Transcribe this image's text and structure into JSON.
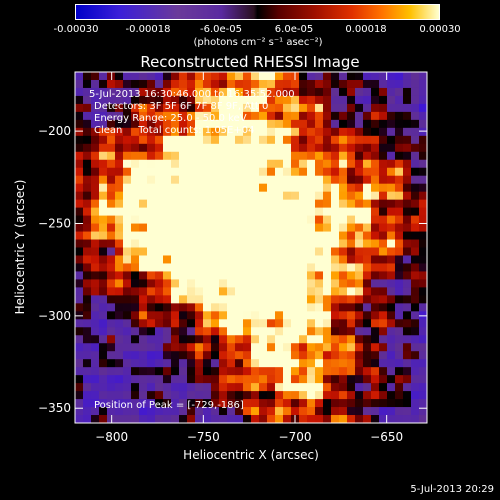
{
  "colorbar": {
    "ticks": [
      {
        "label": "-0.00030",
        "value": -0.0003
      },
      {
        "label": "-0.00018",
        "value": -0.00018
      },
      {
        "label": "-6.0e-05",
        "value": -6e-05
      },
      {
        "label": "6.0e-05",
        "value": 6e-05
      },
      {
        "label": "0.00018",
        "value": 0.00018
      },
      {
        "label": "0.00030",
        "value": 0.0003
      }
    ],
    "unit": "(photons cm⁻² s⁻¹ asec⁻²)",
    "range": [
      -0.0003,
      0.0003
    ]
  },
  "chart_data": {
    "type": "heatmap",
    "title": "Reconstructed RHESSI Image",
    "xlabel": "Heliocentric X (arcsec)",
    "ylabel": "Heliocentric Y (arcsec)",
    "xlim": [
      -820,
      -628
    ],
    "ylim": [
      -358,
      -168
    ],
    "xticks": [
      -800,
      -750,
      -700,
      -650
    ],
    "yticks": [
      -200,
      -250,
      -300,
      -350
    ],
    "annotations": [
      "5-Jul-2013 16:30:46.000 to 16:35:52.000",
      "Detectors: 3F 5F 6F 7F 8F 9F, Att 0",
      "Energy Range: 25.0 - 50.0 keV",
      "Clean     Total counts: 1.05E+04"
    ],
    "peak_label": "Position of Peak = [-729,-186]",
    "peak": [
      -729,
      -186
    ],
    "bright_regions": [
      {
        "x": -745,
        "y": -255,
        "level": 1.0
      },
      {
        "x": -715,
        "y": -270,
        "level": 0.9
      },
      {
        "x": -700,
        "y": -330,
        "level": 0.85
      },
      {
        "x": -730,
        "y": -186,
        "level": 0.95
      },
      {
        "x": -790,
        "y": -240,
        "level": 0.8
      },
      {
        "x": -665,
        "y": -240,
        "level": 0.75
      }
    ]
  },
  "timestamp": "5-Jul-2013 20:29"
}
